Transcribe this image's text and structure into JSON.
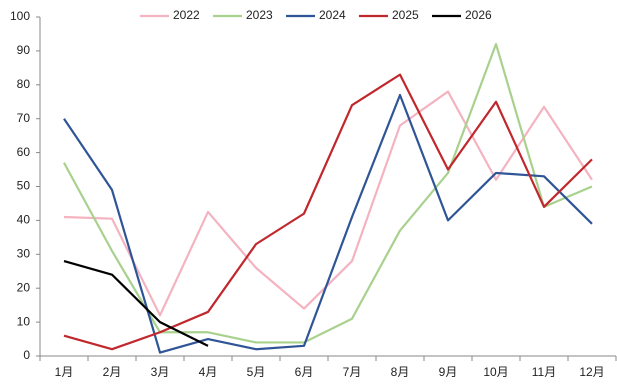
{
  "chart_data": {
    "type": "line",
    "categories": [
      "1月",
      "2月",
      "3月",
      "4月",
      "5月",
      "6月",
      "7月",
      "8月",
      "9月",
      "10月",
      "11月",
      "12月"
    ],
    "series": [
      {
        "name": "2022",
        "color": "#f4b3c0",
        "values": [
          41,
          40.5,
          12,
          42.5,
          26,
          14,
          28,
          68,
          78,
          52,
          73.5,
          52
        ]
      },
      {
        "name": "2023",
        "color": "#a9d18e",
        "values": [
          57,
          31,
          7,
          7,
          4,
          4,
          11,
          37,
          54,
          92,
          44,
          50
        ]
      },
      {
        "name": "2024",
        "color": "#2f5597",
        "values": [
          70,
          49,
          1,
          5,
          2,
          3,
          41,
          77,
          40,
          54,
          53,
          39
        ]
      },
      {
        "name": "2025",
        "color": "#c0282d",
        "values": [
          6,
          2,
          7,
          13,
          33,
          42,
          74,
          83,
          55,
          75,
          44,
          58
        ]
      },
      {
        "name": "2026",
        "color": "#000000",
        "values": [
          28,
          24,
          10,
          3,
          null,
          null,
          null,
          null,
          null,
          null,
          null,
          null
        ]
      }
    ],
    "ylim": [
      0,
      100
    ],
    "yticks": [
      0,
      10,
      20,
      30,
      40,
      50,
      60,
      70,
      80,
      90,
      100
    ],
    "grid": false,
    "legend": "top"
  }
}
